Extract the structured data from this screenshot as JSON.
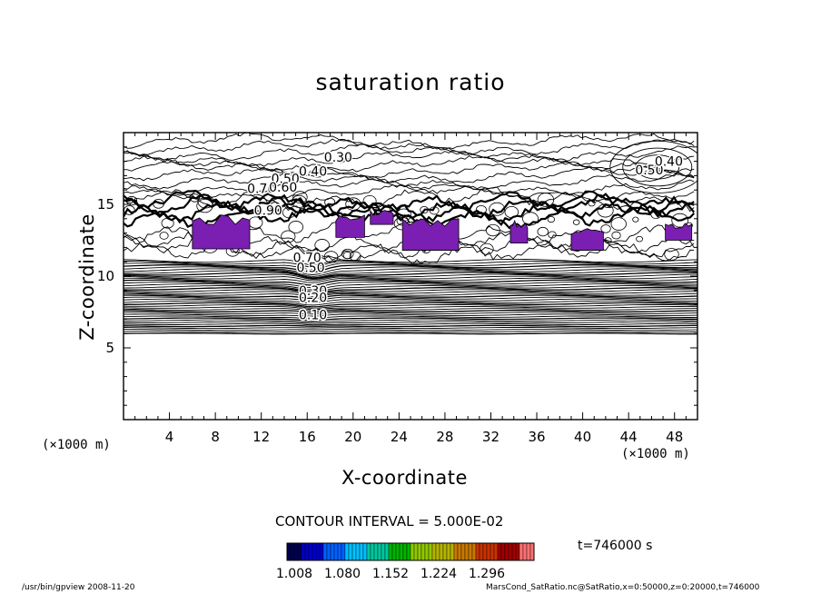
{
  "chart_data": {
    "type": "contour",
    "title": "saturation ratio",
    "xlabel": "X-coordinate",
    "ylabel": "Z-coordinate",
    "x_unit": "(×1000 m)",
    "y_unit": "(×1000 m)",
    "xlim": [
      0,
      50
    ],
    "ylim": [
      0,
      20
    ],
    "x_ticks": [
      4,
      8,
      12,
      16,
      20,
      24,
      28,
      32,
      36,
      40,
      44,
      48
    ],
    "y_ticks": [
      5,
      10,
      15
    ],
    "contour_interval_label": "CONTOUR INTERVAL = 5.000E-02",
    "contour_labels": [
      {
        "x": 18.7,
        "z": 18.3,
        "text": "0.30"
      },
      {
        "x": 16.5,
        "z": 17.3,
        "text": "0.40"
      },
      {
        "x": 14.1,
        "z": 16.8,
        "text": "0.50"
      },
      {
        "x": 12.0,
        "z": 16.1,
        "text": "0.70"
      },
      {
        "x": 13.9,
        "z": 16.2,
        "text": "0.60"
      },
      {
        "x": 45.8,
        "z": 17.4,
        "text": "0.50"
      },
      {
        "x": 47.5,
        "z": 18.0,
        "text": "0.40"
      },
      {
        "x": 12.6,
        "z": 14.6,
        "text": "0.90"
      },
      {
        "x": 16.0,
        "z": 11.3,
        "text": "0.70"
      },
      {
        "x": 16.3,
        "z": 10.6,
        "text": "0.50"
      },
      {
        "x": 16.5,
        "z": 9.0,
        "text": "0.30"
      },
      {
        "x": 16.5,
        "z": 8.5,
        "text": "0.20"
      },
      {
        "x": 16.5,
        "z": 7.3,
        "text": "0.10"
      }
    ],
    "shaded_regions_above": 1.0,
    "shade_color": "#7a1fb2",
    "shaded_regions": [
      {
        "x": [
          6.0,
          11.0
        ],
        "z": [
          11.9,
          14.3
        ]
      },
      {
        "x": [
          18.5,
          21.0
        ],
        "z": [
          12.7,
          14.3
        ]
      },
      {
        "x": [
          21.5,
          23.5
        ],
        "z": [
          13.6,
          14.6
        ]
      },
      {
        "x": [
          24.3,
          29.2
        ],
        "z": [
          11.8,
          14.3
        ]
      },
      {
        "x": [
          33.7,
          35.2
        ],
        "z": [
          12.3,
          13.9
        ]
      },
      {
        "x": [
          39.0,
          41.8
        ],
        "z": [
          11.8,
          13.4
        ]
      },
      {
        "x": [
          47.2,
          49.5
        ],
        "z": [
          12.5,
          13.7
        ]
      }
    ],
    "colorbar": {
      "ticks": [
        "1.008",
        "1.080",
        "1.152",
        "1.224",
        "1.296"
      ],
      "colors": [
        "#000050",
        "#0000c8",
        "#0060ff",
        "#00c0ff",
        "#00c8a0",
        "#00b400",
        "#90c800",
        "#b4b400",
        "#c87800",
        "#c83200",
        "#a00000",
        "#ff7070"
      ]
    }
  },
  "time_label": "t=746000  s",
  "footer_left": "/usr/bin/gpview  2008-11-20",
  "footer_right": "MarsCond_SatRatio.nc@SatRatio,x=0:50000,z=0:20000,t=746000"
}
